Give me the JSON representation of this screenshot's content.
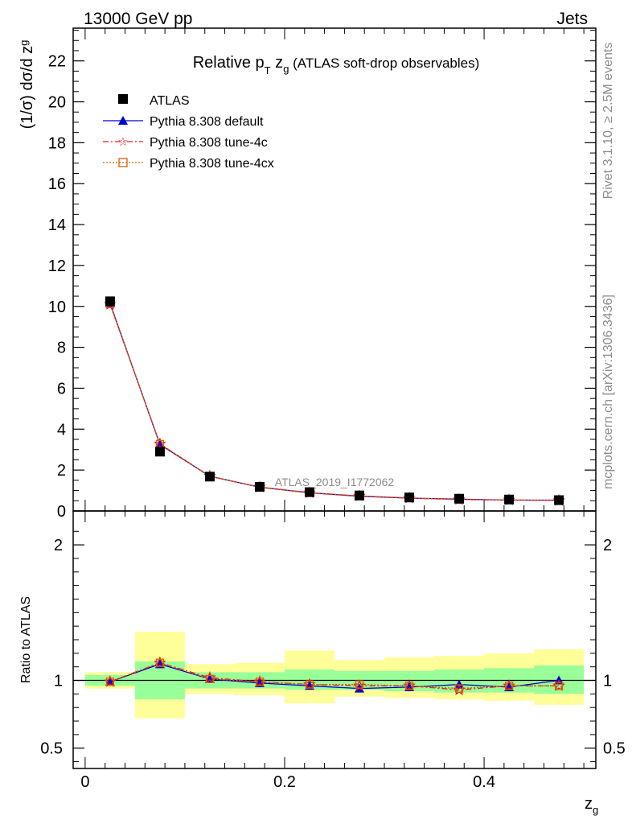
{
  "header": {
    "energy_label": "13000 GeV pp",
    "process_label": "Jets"
  },
  "side_labels": {
    "rivet": "Rivet 3.1.10, ≥ 2.5M events",
    "mcplots": "mcplots.cern.ch [arXiv:1306.3436]"
  },
  "watermark": "ATLAS_2019_I1772062",
  "chart_data": [
    {
      "type": "line",
      "title_main": "Relative p",
      "title_sub_T": "T",
      "title_z": " z",
      "title_sub_g": "g",
      "title_rest": " (ATLAS soft-drop observables)",
      "ylabel_prefix": "(1/σ) dσ/d z",
      "ylabel_sub": "g",
      "xlabel": "z",
      "xlabel_sub": "g",
      "xlim": [
        -0.012,
        0.512
      ],
      "ylim": [
        0,
        23.6
      ],
      "yticks": [
        0,
        2,
        4,
        6,
        8,
        10,
        12,
        14,
        16,
        18,
        20,
        22
      ],
      "ytick_labels": [
        "0",
        "2",
        "4",
        "6",
        "8",
        "10",
        "12",
        "14",
        "16",
        "18",
        "20",
        "22"
      ],
      "legend_position": "top-left",
      "x": [
        0.025,
        0.075,
        0.125,
        0.175,
        0.225,
        0.275,
        0.325,
        0.375,
        0.425,
        0.475
      ],
      "bin_edges": [
        0,
        0.05,
        0.1,
        0.15,
        0.2,
        0.25,
        0.3,
        0.35,
        0.4,
        0.45,
        0.5
      ],
      "series": [
        {
          "name": "ATLAS",
          "marker": "square",
          "color": "#000000",
          "values": [
            10.25,
            2.9,
            1.68,
            1.18,
            0.92,
            0.76,
            0.66,
            0.6,
            0.56,
            0.53
          ]
        },
        {
          "name": "Pythia 8.308 default",
          "marker": "triangle",
          "color": "#0000cc",
          "line": "solid",
          "values": [
            10.15,
            3.25,
            1.7,
            1.16,
            0.89,
            0.72,
            0.63,
            0.58,
            0.53,
            0.53
          ]
        },
        {
          "name": "Pythia 8.308 tune-4c",
          "marker": "star",
          "color": "#e41a1c",
          "line": "dashdot",
          "values": [
            10.1,
            3.28,
            1.7,
            1.17,
            0.89,
            0.73,
            0.63,
            0.56,
            0.54,
            0.51
          ]
        },
        {
          "name": "Pythia 8.308 tune-4cx",
          "marker": "open-square",
          "color": "#d95f02",
          "line": "dotted",
          "values": [
            10.12,
            3.27,
            1.69,
            1.17,
            0.9,
            0.74,
            0.64,
            0.56,
            0.54,
            0.51
          ]
        }
      ]
    },
    {
      "type": "line",
      "ylabel": "Ratio to ATLAS",
      "ylim": [
        0.35,
        2.25
      ],
      "yticks": [
        0.5,
        1,
        2
      ],
      "ytick_labels": [
        "0.5",
        "1",
        "2"
      ],
      "xticks": [
        0,
        0.2,
        0.4
      ],
      "xtick_labels": [
        "0",
        "0.2",
        "0.4"
      ],
      "band_stat": [
        [
          0.96,
          1.04
        ],
        [
          0.86,
          1.14
        ],
        [
          0.94,
          1.06
        ],
        [
          0.94,
          1.06
        ],
        [
          0.93,
          1.08
        ],
        [
          0.93,
          1.07
        ],
        [
          0.92,
          1.07
        ],
        [
          0.91,
          1.08
        ],
        [
          0.91,
          1.09
        ],
        [
          0.9,
          1.11
        ]
      ],
      "band_total": [
        [
          0.94,
          1.06
        ],
        [
          0.72,
          1.36
        ],
        [
          0.9,
          1.12
        ],
        [
          0.89,
          1.13
        ],
        [
          0.83,
          1.22
        ],
        [
          0.88,
          1.15
        ],
        [
          0.87,
          1.17
        ],
        [
          0.86,
          1.18
        ],
        [
          0.85,
          1.2
        ],
        [
          0.82,
          1.23
        ]
      ],
      "band_colors": {
        "stat": "#99ff99",
        "total": "#ffff99"
      },
      "series": [
        {
          "name": "Pythia 8.308 default",
          "color": "#0000cc",
          "values": [
            0.99,
            1.12,
            1.01,
            0.98,
            0.96,
            0.94,
            0.95,
            0.97,
            0.95,
            1.0
          ]
        },
        {
          "name": "Pythia 8.308 tune-4c",
          "color": "#e41a1c",
          "values": [
            0.99,
            1.13,
            1.02,
            0.99,
            0.97,
            0.96,
            0.96,
            0.93,
            0.96,
            0.96
          ]
        },
        {
          "name": "Pythia 8.308 tune-4cx",
          "color": "#d95f02",
          "values": [
            0.99,
            1.13,
            1.01,
            0.99,
            0.97,
            0.97,
            0.96,
            0.94,
            0.96,
            0.96
          ]
        }
      ]
    }
  ]
}
